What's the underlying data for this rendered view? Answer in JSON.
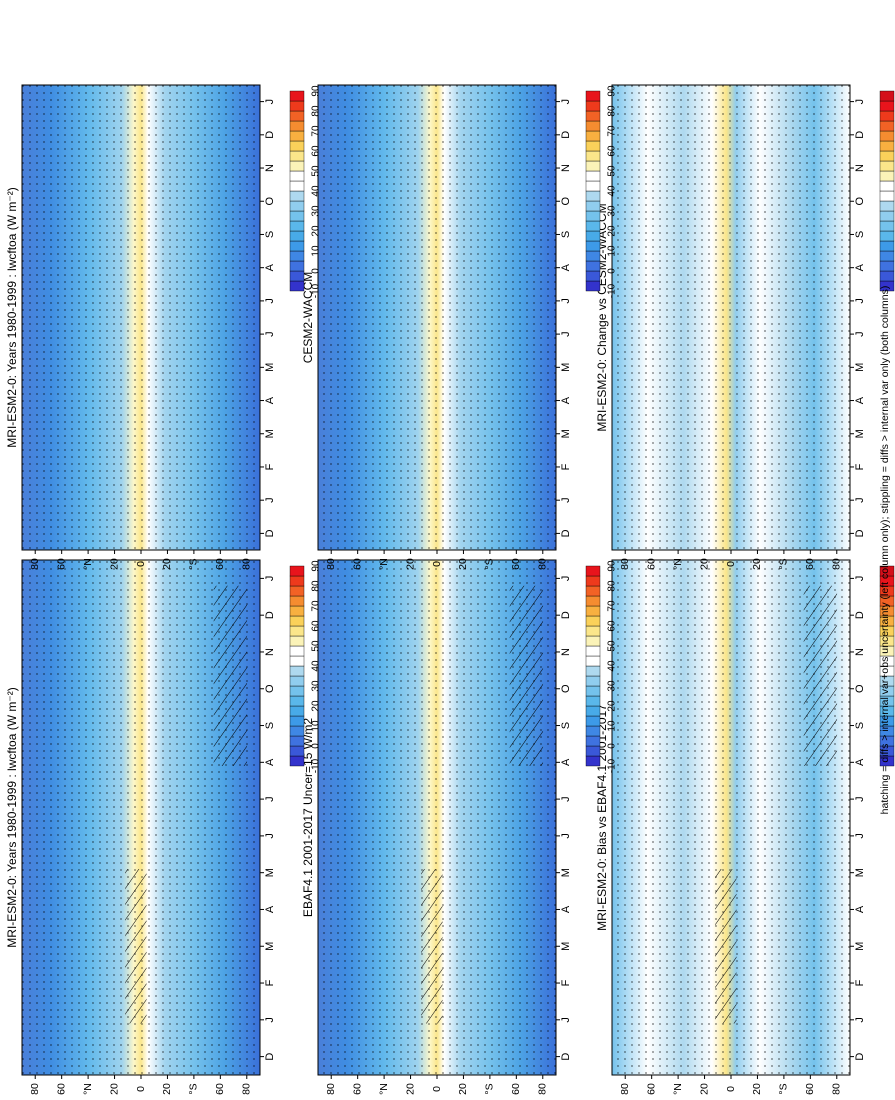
{
  "figure": {
    "footnote": "hatching = diffs > internal var+obs uncertainty (left column only); stippling = diffs > internal var only (both columns)"
  },
  "palettes": {
    "main": [
      "#3333cc",
      "#3a58d8",
      "#3f72e0",
      "#3f87e4",
      "#3d9ae8",
      "#48aae8",
      "#5ab7ea",
      "#74c2ec",
      "#90cdee",
      "#aed9ef",
      "#ffffff",
      "#ffffff",
      "#fbf3b8",
      "#fbe68a",
      "#fad15a",
      "#f8b040",
      "#f58c30",
      "#f26225",
      "#ee3a1c",
      "#e8141c"
    ],
    "diff": [
      "#3333cc",
      "#3a58d8",
      "#3f72e0",
      "#3f87e4",
      "#3d9ae8",
      "#5ab7ea",
      "#74c2ec",
      "#90cdee",
      "#aed9ef",
      "#ffffff",
      "#ffffff",
      "#fbf3b8",
      "#fbe68a",
      "#fad15a",
      "#f8b040",
      "#f58c30",
      "#f26225",
      "#ee3a1c",
      "#e8141c",
      "#d40f1a"
    ]
  },
  "colorbars": {
    "main": [
      "-10",
      "0",
      "10",
      "20",
      "30",
      "40",
      "50",
      "60",
      "70",
      "80",
      "90"
    ],
    "diff": [
      "-20",
      "-16",
      "-12",
      "-8",
      "-4",
      "0",
      "4",
      "8",
      "12",
      "16",
      "20"
    ]
  },
  "axes": {
    "months": [
      "D",
      "J",
      "F",
      "M",
      "A",
      "M",
      "J",
      "J",
      "A",
      "S",
      "O",
      "N",
      "D",
      "J"
    ],
    "lat_ticks": [
      "80",
      "60",
      "°N",
      "20",
      "0",
      "20",
      "°S",
      "60",
      "80"
    ]
  },
  "chart_data": [
    {
      "type": "heatmap",
      "title": "MRI-ESM2-0: Years 1980-1999 : lwcftoa (W m⁻²)",
      "x": "month (Dec–Jan)",
      "y": "latitude (80N–80S)",
      "colorscale": "main",
      "ylim": [
        -90,
        90
      ],
      "legend": "right"
    },
    {
      "type": "heatmap",
      "title": "EBAF4.1 2001-2017 Uncer=15 W/m2",
      "x": "month (Dec–Jan)",
      "y": "latitude (80N–80S)",
      "colorscale": "main",
      "ylim": [
        -90,
        90
      ],
      "legend": "right"
    },
    {
      "type": "heatmap",
      "title": "MRI-ESM2-0: Bias vs EBAF4.1 2001-2017",
      "x": "month (Dec–Jan)",
      "y": "latitude (80N–80S)",
      "colorscale": "diff",
      "ylim": [
        -90,
        90
      ],
      "legend": "right"
    },
    {
      "type": "heatmap",
      "title": "MRI-ESM2-0: Years 1980-1999 : lwcftoa (W m⁻²)",
      "x": "month (Dec–Jan)",
      "y": "latitude (80N–80S)",
      "colorscale": "main",
      "ylim": [
        -90,
        90
      ],
      "legend": "right"
    },
    {
      "type": "heatmap",
      "title": "CESM2-WACCM",
      "x": "month (Dec–Jan)",
      "y": "latitude (80N–80S)",
      "colorscale": "main",
      "ylim": [
        -90,
        90
      ],
      "legend": "right"
    },
    {
      "type": "heatmap",
      "title": "MRI-ESM2-0: Change vs CESM2-WACCM",
      "x": "month (Dec–Jan)",
      "y": "latitude (80N–80S)",
      "colorscale": "diff",
      "ylim": [
        -90,
        90
      ],
      "legend": "right"
    }
  ]
}
